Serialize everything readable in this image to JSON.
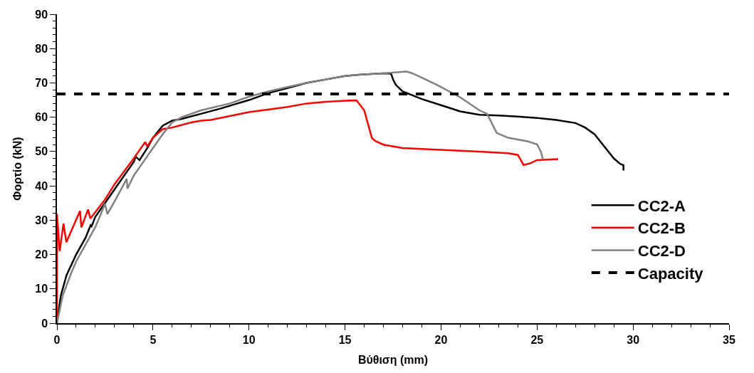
{
  "chart_data": {
    "type": "line",
    "xlabel": "Βύθιση (mm)",
    "ylabel": "Φορτίο (kN)",
    "xlim": [
      0,
      35
    ],
    "xticks": [
      0,
      5,
      10,
      15,
      20,
      25,
      30,
      35
    ],
    "ylim": [
      0,
      90
    ],
    "yticks": [
      0,
      10,
      20,
      30,
      40,
      50,
      60,
      70,
      80,
      90
    ],
    "legend": "right",
    "marker": "none",
    "series": [
      {
        "name": "CC2-A",
        "color": "#000000",
        "line_style": "solid",
        "x": [
          0,
          0.2,
          0.5,
          1.0,
          1.5,
          1.75,
          1.8,
          2.0,
          2.5,
          3,
          3.5,
          4.0,
          4.1,
          4.3,
          4.7,
          5.0,
          5.5,
          6.0,
          6.5,
          7.5,
          8.5,
          10,
          11,
          12,
          13,
          14,
          15,
          16,
          17,
          17.4,
          17.5,
          17.65,
          18,
          19,
          20,
          21,
          22,
          23,
          24,
          25,
          26,
          27,
          27.5,
          28,
          28.5,
          29,
          29.3,
          29.5,
          29.5
        ],
        "values": [
          0,
          8,
          14,
          20,
          25,
          28.5,
          28.2,
          31,
          35,
          39,
          43,
          47,
          48.5,
          47.5,
          51,
          54,
          57.5,
          59,
          59.5,
          61,
          62.5,
          65,
          67,
          68.5,
          70,
          71,
          72,
          72.5,
          72.8,
          72.7,
          71,
          69.4,
          67.5,
          65.3,
          63.5,
          61.7,
          60.7,
          60.5,
          60.2,
          59.8,
          59.2,
          58.3,
          57,
          55,
          51.5,
          48,
          46.5,
          46,
          44.5
        ]
      },
      {
        "name": "CC2-B",
        "color": "#ff0000",
        "line_style": "solid",
        "x": [
          0,
          0,
          0.14,
          0.34,
          0.49,
          1.2,
          1.27,
          1.62,
          1.74,
          2.5,
          3,
          4,
          4.6,
          4.7,
          5,
          5.5,
          6,
          7,
          7.5,
          8,
          10,
          12,
          13,
          14,
          15,
          15.6,
          16,
          16.2,
          16.4,
          16.6,
          17,
          18,
          20,
          22,
          23.5,
          24,
          24.3,
          24.6,
          25,
          26.1
        ],
        "values": [
          0,
          31.8,
          21,
          29,
          23.6,
          32.7,
          27.9,
          33.1,
          30.5,
          36,
          40.5,
          48,
          52.8,
          51.5,
          54,
          56.5,
          57,
          58.5,
          59,
          59.2,
          61.5,
          63,
          64,
          64.5,
          64.8,
          64.9,
          62,
          58,
          53.9,
          53,
          52,
          51,
          50.5,
          50,
          49.5,
          49,
          46.1,
          46.5,
          47.5,
          47.8
        ]
      },
      {
        "name": "CC2-D",
        "color": "#808080",
        "line_style": "solid",
        "x": [
          0,
          0.3,
          0.7,
          1,
          1.5,
          2,
          2.3,
          2.5,
          2.63,
          3,
          3.63,
          3.67,
          4,
          4.5,
          5,
          5.5,
          6,
          6.5,
          7.5,
          9,
          10,
          11,
          12,
          13,
          14,
          15,
          16,
          17,
          18.2,
          18.5,
          19,
          19.8,
          21,
          22,
          22.4,
          22.9,
          23.5,
          24.5,
          25,
          25.2,
          25.3
        ],
        "values": [
          0,
          8,
          14,
          18,
          23,
          28,
          32,
          34.8,
          31.8,
          35.5,
          42,
          39.2,
          43,
          47,
          51,
          55,
          58.5,
          60,
          62,
          64,
          66,
          67.5,
          68.8,
          70,
          71,
          72,
          72.5,
          72.8,
          73.3,
          72.8,
          71.5,
          69.4,
          65.8,
          62,
          61,
          55.4,
          54,
          53,
          52.1,
          50,
          47.8
        ]
      },
      {
        "name": "Capacity",
        "color": "#000000",
        "line_style": "dashed",
        "x": [
          0,
          35
        ],
        "values": [
          66.8,
          66.8
        ]
      }
    ]
  }
}
